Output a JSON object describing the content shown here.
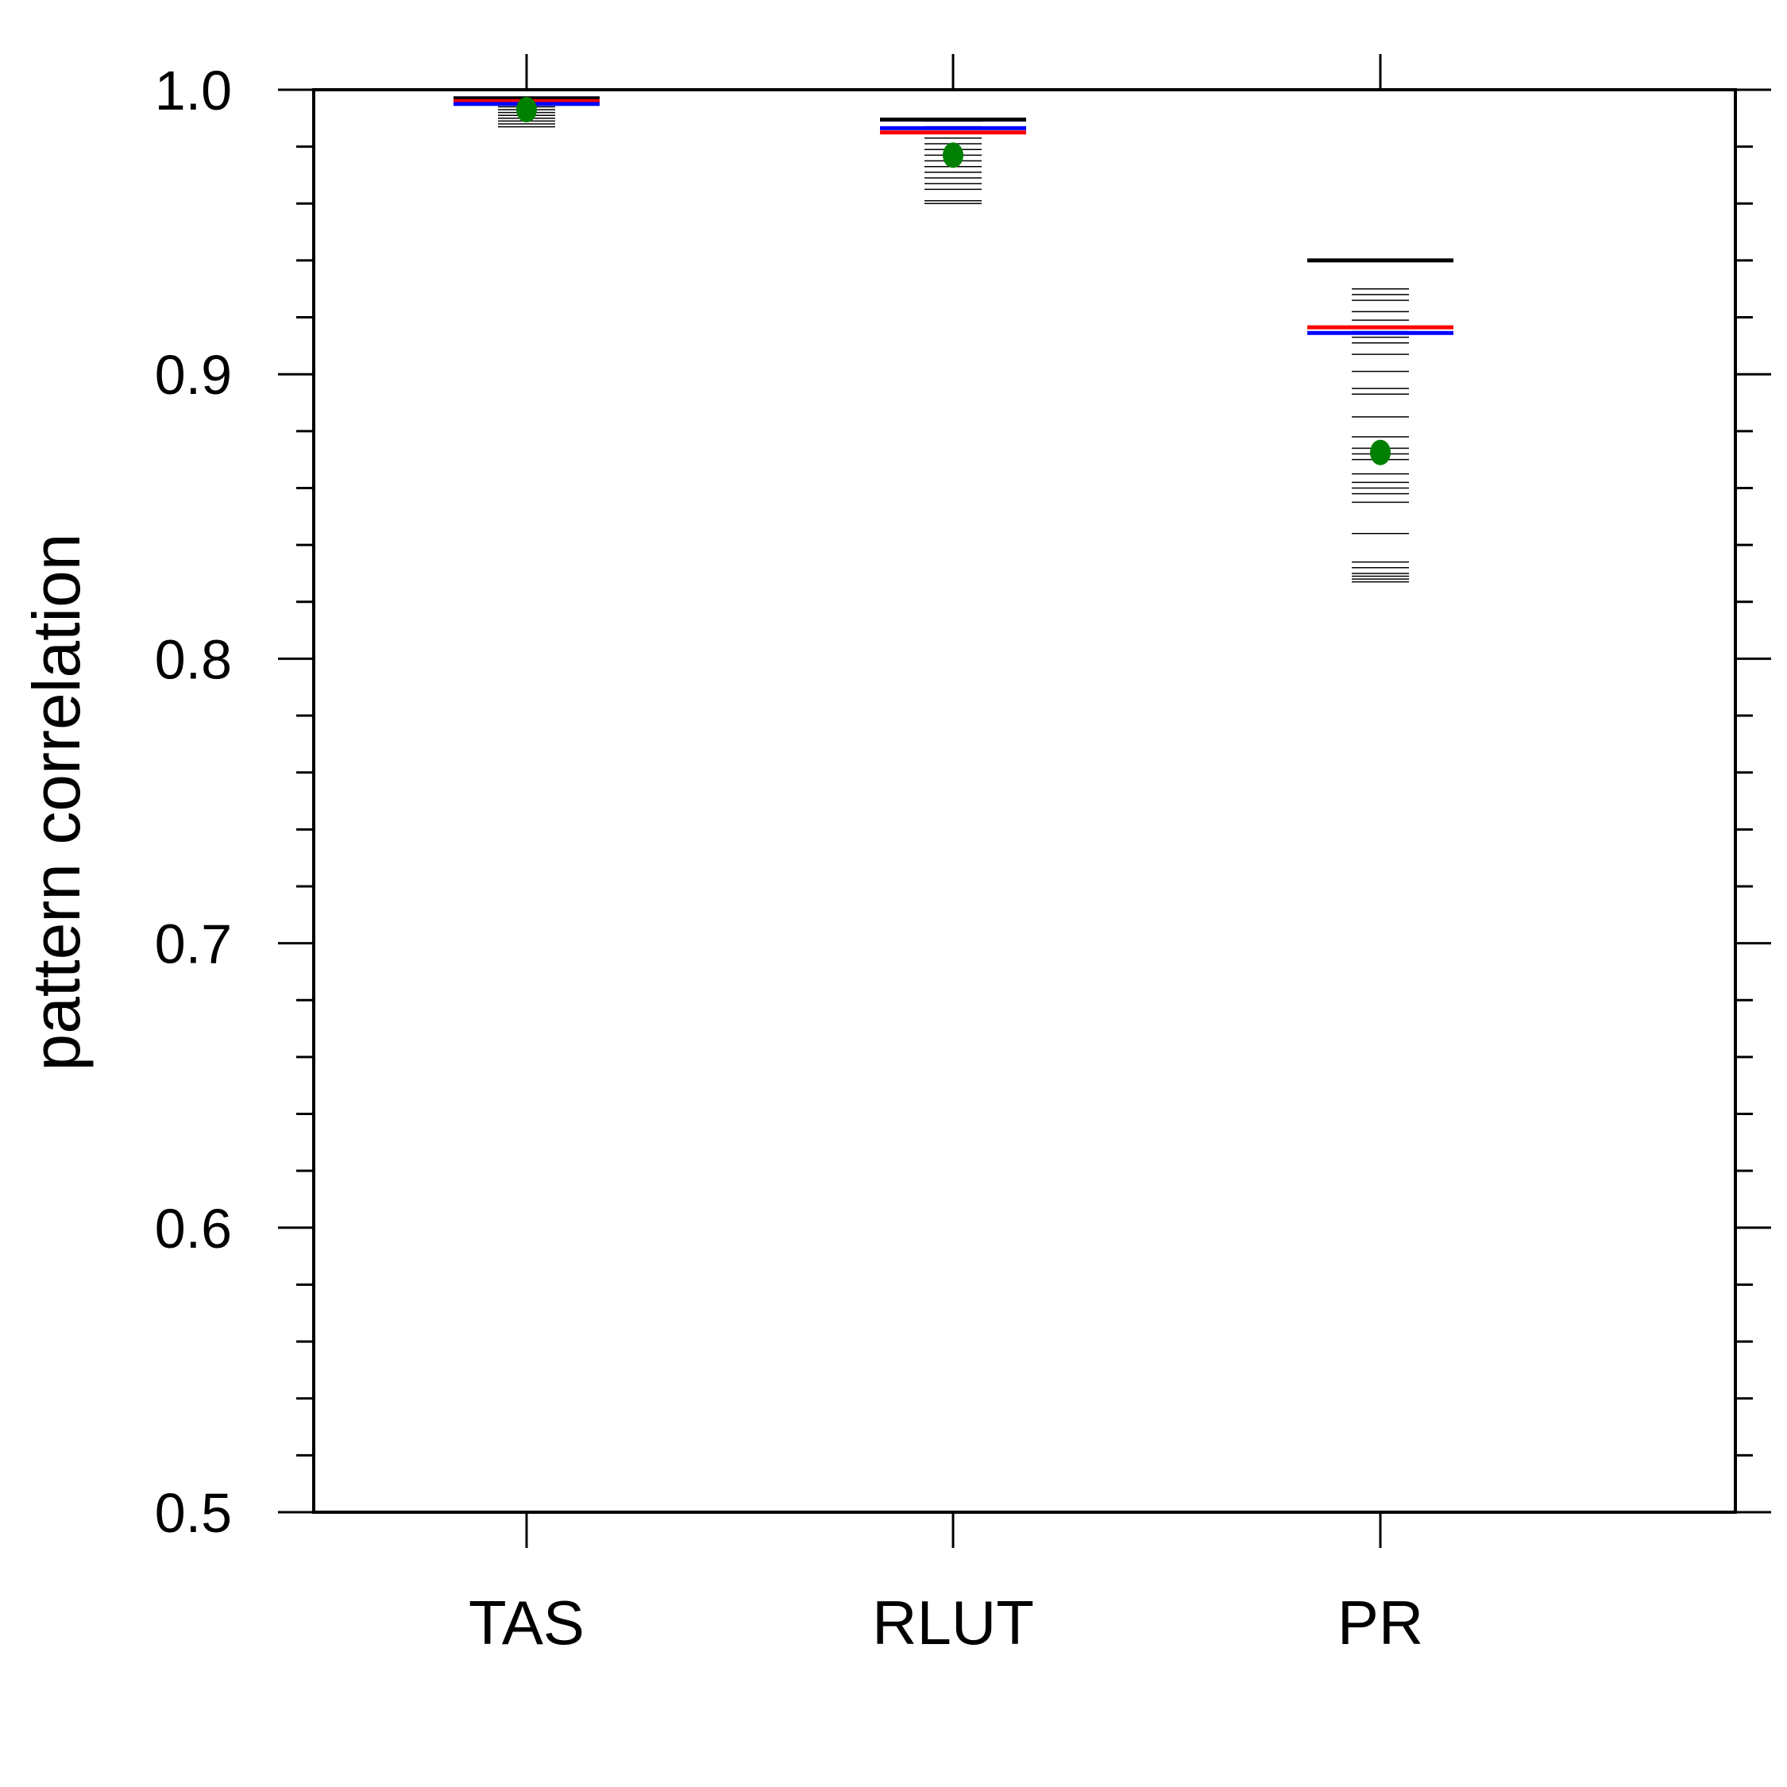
{
  "chart_data": {
    "type": "scatter",
    "title": "",
    "xlabel": "",
    "ylabel": "pattern correlation",
    "ylim": [
      0.5,
      1.0
    ],
    "yticks": [
      "0.5",
      "0.6",
      "0.7",
      "0.8",
      "0.9",
      "1.0"
    ],
    "categories": [
      "TAS",
      "RLUT",
      "PR"
    ],
    "grid": false,
    "colors": {
      "black_line": "#000000",
      "red_line": "#ff0000",
      "blue_line": "#0000ff",
      "green_dot": "#008000",
      "ensemble_lines": "#000000"
    },
    "series": [
      {
        "values": [
          0.997,
          0.9895,
          0.94
        ]
      },
      {
        "values": [
          0.996,
          0.985,
          0.9165
        ]
      },
      {
        "values": [
          0.995,
          0.9865,
          0.9145
        ]
      },
      {
        "values": [
          0.993,
          0.977,
          0.8725
        ]
      }
    ],
    "ensemble": [
      [
        0.996,
        0.995,
        0.994,
        0.993,
        0.992,
        0.991,
        0.99,
        0.989,
        0.988,
        0.987
      ],
      [
        0.989,
        0.987,
        0.985,
        0.983,
        0.981,
        0.979,
        0.977,
        0.975,
        0.973,
        0.971,
        0.969,
        0.967,
        0.965,
        0.961,
        0.96
      ],
      [
        0.93,
        0.928,
        0.926,
        0.922,
        0.919,
        0.915,
        0.913,
        0.911,
        0.907,
        0.901,
        0.895,
        0.893,
        0.885,
        0.878,
        0.874,
        0.872,
        0.87,
        0.865,
        0.862,
        0.86,
        0.858,
        0.855,
        0.844,
        0.834,
        0.832,
        0.83,
        0.829,
        0.828,
        0.827
      ]
    ]
  }
}
